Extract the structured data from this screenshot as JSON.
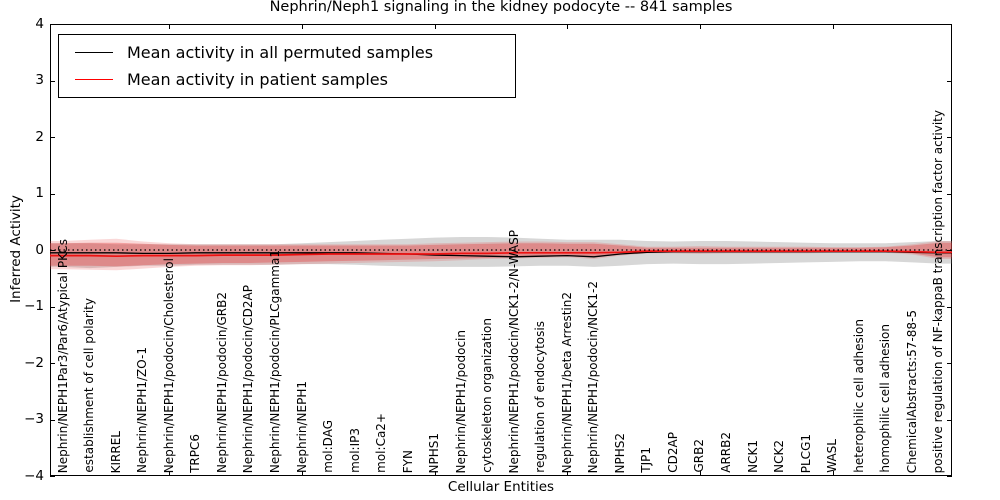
{
  "title": "Nephrin/Neph1 signaling in the kidney podocyte -- 841 samples",
  "axes": {
    "ylabel": "Inferred Activity",
    "xlabel": "Cellular Entities",
    "ytick_labels": [
      "4",
      "3",
      "2",
      "1",
      "0",
      "−1",
      "−2",
      "−3",
      "−4"
    ],
    "ytick_values": [
      4,
      3,
      2,
      1,
      0,
      -1,
      -2,
      -3,
      -4
    ]
  },
  "legend": {
    "items": [
      {
        "label": "Mean activity in all permuted samples",
        "color": "#000000"
      },
      {
        "label": "Mean activity in patient samples",
        "color": "#ff0000"
      }
    ]
  },
  "chart_data": {
    "type": "line",
    "title": "Nephrin/Neph1 signaling in the kidney podocyte -- 841 samples",
    "xlabel": "Cellular Entities",
    "ylabel": "Inferred Activity",
    "ylim": [
      -4,
      4
    ],
    "grid": false,
    "legend_position": "upper left",
    "zero_reference_line": 0,
    "xtick_mark_indices": [
      4,
      9,
      14,
      19,
      24,
      29
    ],
    "categories": [
      "Nephrin/NEPH1Par3/Par6/Atypical PKCs",
      "establishment of cell polarity",
      "KIRREL",
      "Nephrin/NEPH1/ZO-1",
      "Nephrin/NEPH1/podocin/Cholesterol",
      "TRPC6",
      "Nephrin/NEPH1/podocin/GRB2",
      "Nephrin/NEPH1/podocin/CD2AP",
      "Nephrin/NEPH1/podocin/PLCgamma1",
      "Nephrin/NEPH1",
      "mol:DAG",
      "mol:IP3",
      "mol:Ca2+",
      "FYN",
      "NPHS1",
      "Nephrin/NEPH1/podocin",
      "cytoskeleton organization",
      "Nephrin/NEPH1/podocin/NCK1-2/N-WASP",
      "regulation of endocytosis",
      "Nephrin/NEPH1/beta Arrestin2",
      "Nephrin/NEPH1/podocin/NCK1-2",
      "NPHS2",
      "TJP1",
      "CD2AP",
      "GRB2",
      "ARRB2",
      "NCK1",
      "NCK2",
      "PLCG1",
      "WASL",
      "heterophilic cell adhesion",
      "homophilic cell adhesion",
      "ChemicalAbstracts:57-88-5",
      "positive regulation of NF-kappaB transcription factor activity"
    ],
    "series": [
      {
        "name": "Mean activity in all permuted samples",
        "color": "#000000",
        "width": 1.3,
        "values": [
          -0.05,
          -0.05,
          -0.05,
          -0.06,
          -0.06,
          -0.05,
          -0.05,
          -0.05,
          -0.05,
          -0.05,
          -0.05,
          -0.05,
          -0.06,
          -0.07,
          -0.09,
          -0.1,
          -0.11,
          -0.12,
          -0.11,
          -0.1,
          -0.12,
          -0.07,
          -0.04,
          -0.03,
          -0.03,
          -0.03,
          -0.03,
          -0.03,
          -0.03,
          -0.03,
          -0.03,
          -0.03,
          -0.04,
          -0.05
        ]
      },
      {
        "name": "Mean activity in patient samples",
        "color": "#ee1111",
        "width": 1.7,
        "values": [
          -0.1,
          -0.1,
          -0.11,
          -0.1,
          -0.1,
          -0.1,
          -0.09,
          -0.09,
          -0.09,
          -0.08,
          -0.07,
          -0.07,
          -0.07,
          -0.07,
          -0.07,
          -0.06,
          -0.06,
          -0.05,
          -0.05,
          -0.05,
          -0.05,
          -0.04,
          -0.02,
          -0.02,
          -0.02,
          -0.02,
          -0.02,
          -0.02,
          -0.02,
          -0.02,
          -0.02,
          -0.02,
          -0.03,
          -0.04
        ]
      }
    ],
    "bands": [
      {
        "name": "permuted-samples-range",
        "color": "rgba(110,110,110,0.28)",
        "lo": [
          -0.3,
          -0.32,
          -0.3,
          -0.28,
          -0.28,
          -0.26,
          -0.26,
          -0.26,
          -0.26,
          -0.25,
          -0.25,
          -0.26,
          -0.28,
          -0.29,
          -0.3,
          -0.3,
          -0.3,
          -0.29,
          -0.28,
          -0.28,
          -0.3,
          -0.28,
          -0.25,
          -0.24,
          -0.25,
          -0.25,
          -0.24,
          -0.23,
          -0.22,
          -0.21,
          -0.2,
          -0.2,
          -0.22,
          -0.24
        ],
        "hi": [
          0.12,
          0.12,
          0.1,
          0.1,
          0.1,
          0.1,
          0.1,
          0.1,
          0.1,
          0.12,
          0.14,
          0.16,
          0.18,
          0.2,
          0.22,
          0.23,
          0.23,
          0.22,
          0.2,
          0.18,
          0.18,
          0.18,
          0.16,
          0.15,
          0.16,
          0.16,
          0.15,
          0.14,
          0.13,
          0.12,
          0.12,
          0.12,
          0.14,
          0.16
        ]
      },
      {
        "name": "patient-samples-range-outer",
        "color": "rgba(232,60,60,0.20)",
        "lo": [
          -0.34,
          -0.35,
          -0.36,
          -0.33,
          -0.3,
          -0.28,
          -0.27,
          -0.27,
          -0.26,
          -0.25,
          -0.24,
          -0.23,
          -0.22,
          -0.21,
          -0.2,
          -0.18,
          -0.16,
          -0.15,
          -0.14,
          -0.13,
          -0.16,
          -0.1,
          -0.06,
          -0.06,
          -0.07,
          -0.06,
          -0.06,
          -0.06,
          -0.06,
          -0.05,
          -0.05,
          -0.05,
          -0.08,
          -0.16
        ],
        "hi": [
          0.16,
          0.18,
          0.2,
          0.15,
          0.12,
          0.1,
          0.1,
          0.1,
          0.1,
          0.1,
          0.1,
          0.1,
          0.1,
          0.1,
          0.12,
          0.13,
          0.14,
          0.15,
          0.15,
          0.14,
          0.14,
          0.1,
          0.06,
          0.06,
          0.07,
          0.06,
          0.06,
          0.06,
          0.06,
          0.05,
          0.05,
          0.06,
          0.1,
          0.16
        ]
      },
      {
        "name": "patient-samples-range-inner",
        "color": "rgba(228,50,50,0.34)",
        "lo": [
          -0.28,
          -0.28,
          -0.29,
          -0.27,
          -0.25,
          -0.24,
          -0.23,
          -0.23,
          -0.22,
          -0.21,
          -0.2,
          -0.19,
          -0.18,
          -0.17,
          -0.16,
          -0.15,
          -0.14,
          -0.13,
          -0.12,
          -0.11,
          -0.13,
          -0.08,
          -0.05,
          -0.05,
          -0.05,
          -0.05,
          -0.05,
          -0.05,
          -0.05,
          -0.04,
          -0.04,
          -0.04,
          -0.06,
          -0.13
        ],
        "hi": [
          0.12,
          0.13,
          0.13,
          0.11,
          0.09,
          0.08,
          0.08,
          0.08,
          0.08,
          0.08,
          0.08,
          0.08,
          0.08,
          0.08,
          0.09,
          0.1,
          0.11,
          0.12,
          0.12,
          0.11,
          0.11,
          0.08,
          0.04,
          0.04,
          0.04,
          0.04,
          0.04,
          0.04,
          0.04,
          0.04,
          0.04,
          0.05,
          0.08,
          0.13
        ]
      }
    ]
  }
}
